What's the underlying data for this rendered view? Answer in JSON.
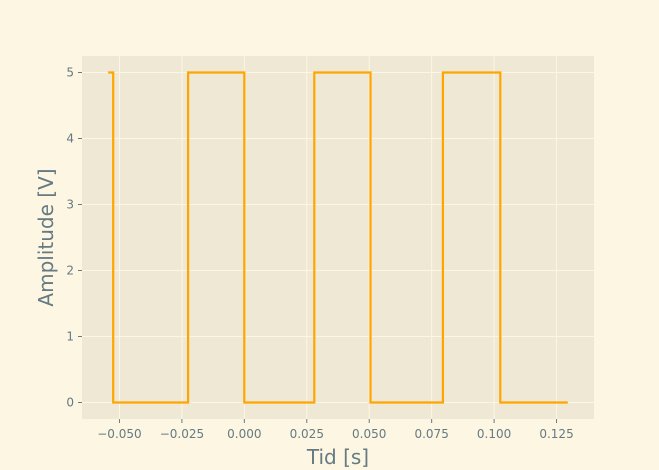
{
  "chart_data": {
    "type": "line",
    "title": "",
    "xlabel": "Tid [s]",
    "ylabel": "Amplitude [V]",
    "xlim": [
      -0.065,
      0.14
    ],
    "ylim": [
      -0.25,
      5.25
    ],
    "grid": true,
    "colors": {
      "background": "#fdf6e3",
      "plot_area": "#eee8d5",
      "grid": "#fdf6e3",
      "text": "#657b83",
      "series": "#ffa500"
    },
    "x_ticks": [
      {
        "value": -0.05,
        "label": "−0.050"
      },
      {
        "value": -0.025,
        "label": "−0.025"
      },
      {
        "value": 0.0,
        "label": "0.000"
      },
      {
        "value": 0.025,
        "label": "0.025"
      },
      {
        "value": 0.05,
        "label": "0.050"
      },
      {
        "value": 0.075,
        "label": "0.075"
      },
      {
        "value": 0.1,
        "label": "0.100"
      },
      {
        "value": 0.125,
        "label": "0.125"
      }
    ],
    "y_ticks": [
      {
        "value": 0,
        "label": "0"
      },
      {
        "value": 1,
        "label": "1"
      },
      {
        "value": 2,
        "label": "2"
      },
      {
        "value": 3,
        "label": "3"
      },
      {
        "value": 4,
        "label": "4"
      },
      {
        "value": 5,
        "label": "5"
      }
    ],
    "series": [
      {
        "x": [
          -0.0545,
          -0.0525,
          -0.0525,
          -0.0225,
          -0.0225,
          0.0,
          0.0,
          0.028,
          0.028,
          0.0505,
          0.0505,
          0.0795,
          0.0795,
          0.1025,
          0.1025,
          0.1295
        ],
        "y": [
          5,
          5,
          0,
          0,
          5,
          5,
          0,
          0,
          5,
          5,
          0,
          0,
          5,
          5,
          0,
          0
        ]
      }
    ]
  }
}
